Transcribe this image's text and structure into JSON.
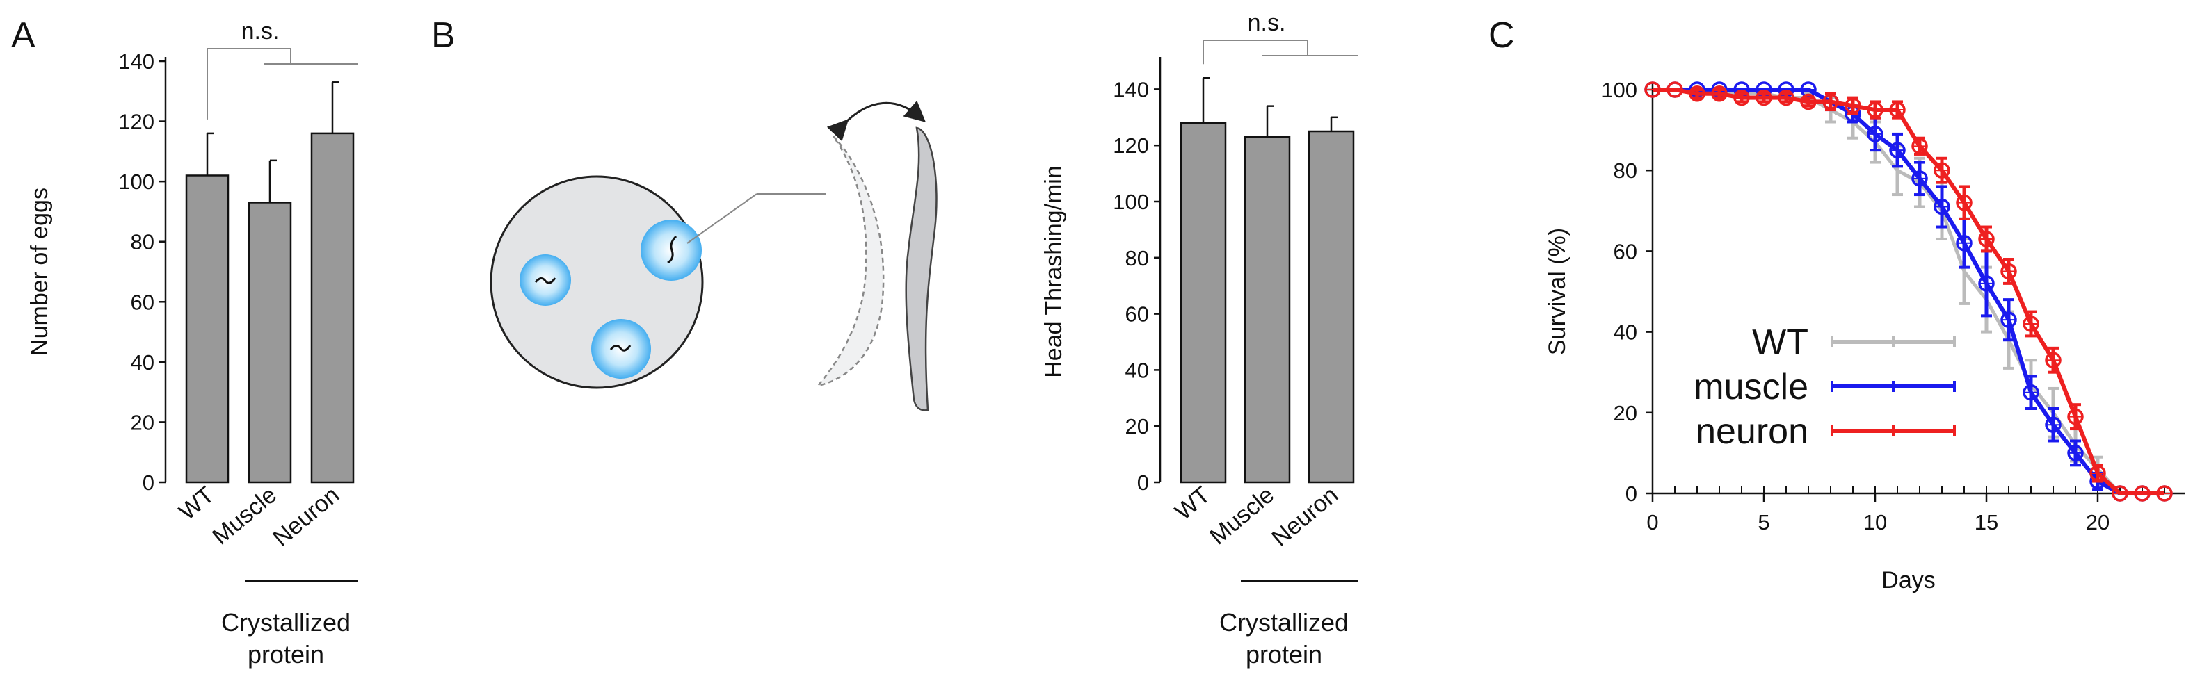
{
  "panels": {
    "a": "A",
    "b": "B",
    "c": "C"
  },
  "chart_data": [
    {
      "id": "A",
      "type": "bar",
      "ylabel": "Number of eggs",
      "ylim": [
        0,
        140
      ],
      "yticks": [
        0,
        20,
        40,
        60,
        80,
        100,
        120,
        140
      ],
      "categories": [
        "WT",
        "Muscle",
        "Neuron"
      ],
      "values": [
        102,
        93,
        116
      ],
      "errors": [
        14,
        14,
        17
      ],
      "bar_color": "#999999",
      "significance": "n.s.",
      "group_label": [
        "Crystallized",
        "protein"
      ]
    },
    {
      "id": "B",
      "type": "bar",
      "ylabel": "Head Thrashing/min",
      "ylim": [
        0,
        150
      ],
      "yticks": [
        0,
        20,
        40,
        60,
        80,
        100,
        120,
        140
      ],
      "categories": [
        "WT",
        "Muscle",
        "Neuron"
      ],
      "values": [
        128,
        123,
        125
      ],
      "errors": [
        16,
        11,
        5
      ],
      "bar_color": "#999999",
      "significance": "n.s.",
      "group_label": [
        "Crystallized",
        "protein"
      ]
    },
    {
      "id": "C",
      "type": "line",
      "xlabel": "Days",
      "ylabel": "Survival (%)",
      "xlim": [
        0,
        23
      ],
      "ylim": [
        0,
        100
      ],
      "xticks": [
        0,
        5,
        10,
        15,
        20
      ],
      "yticks": [
        0,
        20,
        40,
        60,
        80,
        100
      ],
      "legend_position": "bottom-center",
      "series": [
        {
          "name": "WT",
          "color": "#bbbbbb",
          "x": [
            0,
            1,
            2,
            3,
            4,
            5,
            6,
            7,
            8,
            9,
            10,
            11,
            12,
            13,
            14,
            15,
            16,
            17,
            18,
            19,
            20,
            21,
            22,
            23
          ],
          "values": [
            100,
            100,
            100,
            99,
            99,
            99,
            98,
            98,
            95,
            92,
            87,
            80,
            77,
            70,
            55,
            48,
            38,
            27,
            20,
            12,
            6,
            0,
            0,
            0
          ],
          "errors": [
            0,
            0,
            0,
            1,
            1,
            1,
            1,
            1,
            3,
            4,
            5,
            6,
            6,
            7,
            8,
            8,
            7,
            6,
            6,
            4,
            3,
            0,
            0,
            0
          ]
        },
        {
          "name": "muscle",
          "color": "#1a1aee",
          "x": [
            0,
            1,
            2,
            3,
            4,
            5,
            6,
            7,
            8,
            9,
            10,
            11,
            12,
            13,
            14,
            15,
            16,
            17,
            18,
            19,
            20,
            21,
            22,
            23
          ],
          "values": [
            100,
            100,
            100,
            100,
            100,
            100,
            100,
            100,
            97,
            94,
            89,
            85,
            78,
            71,
            62,
            52,
            43,
            25,
            17,
            10,
            3,
            0,
            0,
            0
          ],
          "errors": [
            0,
            0,
            0,
            0,
            0,
            0,
            0,
            0,
            2,
            2,
            4,
            4,
            4,
            5,
            6,
            8,
            5,
            4,
            4,
            3,
            2,
            0,
            0,
            0
          ]
        },
        {
          "name": "neuron",
          "color": "#ee2020",
          "x": [
            0,
            1,
            2,
            3,
            4,
            5,
            6,
            7,
            8,
            9,
            10,
            11,
            12,
            13,
            14,
            15,
            16,
            17,
            18,
            19,
            20,
            21,
            22,
            23
          ],
          "values": [
            100,
            100,
            99,
            99,
            98,
            98,
            98,
            97,
            97,
            96,
            95,
            95,
            86,
            80,
            72,
            63,
            55,
            42,
            33,
            19,
            5,
            0,
            0,
            0
          ],
          "errors": [
            0,
            0,
            1,
            1,
            1,
            1,
            1,
            1,
            2,
            2,
            2,
            2,
            2,
            3,
            4,
            3,
            3,
            3,
            3,
            3,
            2,
            0,
            0,
            0
          ]
        }
      ]
    }
  ]
}
